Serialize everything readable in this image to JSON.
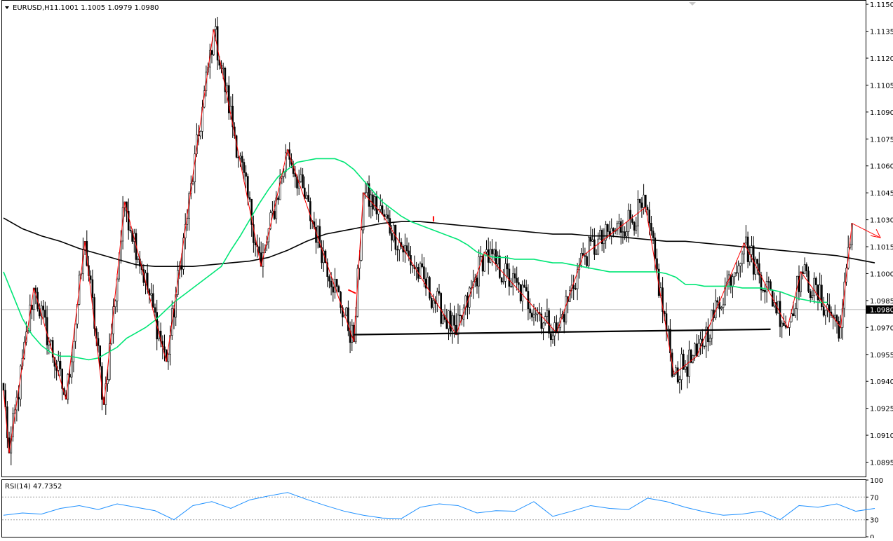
{
  "header": {
    "symbol": "EURUSD,H1",
    "ohlc": "1.1001 1.1005 1.0979 1.0980"
  },
  "colors": {
    "background": "#ffffff",
    "frame": "#000000",
    "candles": "#000000",
    "ma_fast": "#00e676",
    "ma_slow": "#000000",
    "zigzag": "#ff0000",
    "support": "#000000",
    "bid_line": "#c0c0c0",
    "rsi": "#1e90ff",
    "rsi_levels": "#a0a0a0"
  },
  "chart_data": [
    {
      "type": "candlestick",
      "title": "EURUSD,H1",
      "ylim": [
        1.0887,
        1.1152
      ],
      "y_ticks": [
        "1.1150",
        "1.1135",
        "1.1120",
        "1.1105",
        "1.1090",
        "1.1075",
        "1.1060",
        "1.1045",
        "1.1030",
        "1.1015",
        "1.1000",
        "1.0985",
        "1.0970",
        "1.0955",
        "1.0940",
        "1.0925",
        "1.0910",
        "1.0895"
      ],
      "current_price": "1.0980",
      "candles": [],
      "series": [
        {
          "name": "",
          "style": "zigzag",
          "x": [
            0,
            3,
            16,
            33,
            43,
            53,
            64,
            86,
            111,
            136,
            150,
            185,
            190,
            200,
            239,
            254,
            292,
            306,
            339,
            354,
            366,
            391,
            414,
            421,
            442,
            448,
            463
          ],
          "y": [
            1.0935,
            1.09,
            1.0992,
            1.093,
            1.1018,
            1.0927,
            1.104,
            1.0951,
            1.1136,
            1.1004,
            1.1069,
            1.0962,
            1.1045,
            1.1033,
            1.0966,
            1.1012,
            1.0967,
            1.101,
            1.1037,
            1.0944,
            1.0954,
            1.1017,
            1.097,
            1.1001,
            1.097,
            1.1028,
            1.102
          ]
        },
        {
          "name": "",
          "style": "moving_average_fast",
          "x": [
            0,
            5,
            10,
            15,
            20,
            25,
            30,
            35,
            40,
            45,
            50,
            55,
            60,
            65,
            70,
            75,
            80,
            85,
            90,
            95,
            100,
            105,
            110,
            115,
            120,
            125,
            130,
            135,
            140,
            145,
            150,
            155,
            160,
            165,
            170,
            175,
            180,
            185,
            190,
            195,
            200,
            205,
            210,
            215,
            220,
            225,
            230,
            235,
            240,
            245,
            250,
            255,
            260,
            265,
            270,
            275,
            280,
            285,
            290,
            295,
            300,
            305,
            310,
            315,
            320,
            325,
            330,
            335,
            340,
            345,
            350,
            355,
            360,
            365,
            370,
            375,
            380,
            385,
            390,
            395,
            400,
            405,
            410,
            415,
            420,
            425,
            430,
            435
          ],
          "y": [
            1.1001,
            1.0988,
            1.0975,
            1.0966,
            1.096,
            1.0956,
            1.0954,
            1.0954,
            1.0953,
            1.0952,
            1.0953,
            1.0956,
            1.0959,
            1.0964,
            1.0967,
            1.097,
            1.0974,
            1.0979,
            1.0984,
            1.0988,
            1.0992,
            1.0996,
            1.1,
            1.1004,
            1.1013,
            1.1021,
            1.103,
            1.1039,
            1.1047,
            1.1054,
            1.1058,
            1.1062,
            1.1063,
            1.1064,
            1.1064,
            1.1064,
            1.1062,
            1.1058,
            1.1052,
            1.1046,
            1.104,
            1.1036,
            1.1032,
            1.1029,
            1.1027,
            1.1025,
            1.1023,
            1.1021,
            1.1019,
            1.1016,
            1.1012,
            1.101,
            1.1009,
            1.1009,
            1.1008,
            1.1008,
            1.1008,
            1.1007,
            1.1006,
            1.1006,
            1.1005,
            1.1004,
            1.1003,
            1.1002,
            1.1001,
            1.1001,
            1.1001,
            1.1001,
            1.1001,
            1.1001,
            1.1,
            1.0998,
            1.0994,
            1.0994,
            1.0993,
            1.0993,
            1.0993,
            1.0993,
            1.0992,
            1.0992,
            1.0992,
            1.0991,
            1.099,
            1.0988,
            1.0986,
            1.0985,
            1.0984,
            1.0984
          ]
        },
        {
          "name": "",
          "style": "moving_average_slow",
          "x": [
            0,
            10,
            20,
            30,
            40,
            50,
            60,
            70,
            80,
            90,
            100,
            110,
            120,
            130,
            140,
            150,
            160,
            170,
            180,
            190,
            200,
            210,
            220,
            230,
            240,
            250,
            260,
            270,
            280,
            290,
            300,
            310,
            320,
            330,
            340,
            350,
            360,
            370,
            380,
            390,
            400,
            410,
            420,
            430,
            440,
            450,
            460
          ],
          "y": [
            1.1031,
            1.1025,
            1.1021,
            1.1018,
            1.1014,
            1.1011,
            1.1008,
            1.1005,
            1.1004,
            1.1004,
            1.1004,
            1.1005,
            1.1006,
            1.1007,
            1.1009,
            1.1013,
            1.1018,
            1.1022,
            1.1024,
            1.1026,
            1.1028,
            1.1029,
            1.1029,
            1.1028,
            1.1027,
            1.1026,
            1.1025,
            1.1024,
            1.1023,
            1.1022,
            1.1022,
            1.1021,
            1.1021,
            1.102,
            1.1019,
            1.1018,
            1.1018,
            1.1017,
            1.1016,
            1.1015,
            1.1014,
            1.1013,
            1.1012,
            1.1011,
            1.101,
            1.1008,
            1.1006
          ]
        },
        {
          "name": "",
          "style": "support_line",
          "x": [
            185,
            405
          ],
          "y": [
            1.0966,
            1.0969
          ]
        },
        {
          "name": "",
          "style": "arrow_segment",
          "x": [
            182,
            186
          ],
          "y": [
            1.0991,
            1.0989
          ]
        }
      ]
    },
    {
      "type": "line",
      "title": "RSI(14) 47.7352",
      "ylim": [
        0,
        100
      ],
      "y_ticks": [
        "100",
        "70",
        "30",
        "0"
      ],
      "levels": [
        70,
        30
      ],
      "series": [
        {
          "name": "RSI(14)",
          "x": [
            0,
            10,
            20,
            30,
            40,
            50,
            60,
            70,
            80,
            90,
            100,
            110,
            120,
            130,
            140,
            150,
            160,
            170,
            180,
            190,
            200,
            210,
            220,
            230,
            240,
            250,
            260,
            270,
            280,
            290,
            300,
            310,
            320,
            330,
            340,
            350,
            360,
            370,
            380,
            390,
            400,
            410,
            420,
            430,
            440,
            450,
            460
          ],
          "y": [
            38,
            42,
            40,
            50,
            55,
            48,
            58,
            52,
            46,
            30,
            55,
            62,
            50,
            65,
            72,
            78,
            66,
            55,
            45,
            38,
            33,
            32,
            52,
            58,
            55,
            42,
            46,
            45,
            62,
            36,
            45,
            55,
            50,
            48,
            68,
            62,
            52,
            44,
            38,
            40,
            45,
            30,
            55,
            52,
            58,
            45,
            50
          ]
        }
      ]
    }
  ]
}
